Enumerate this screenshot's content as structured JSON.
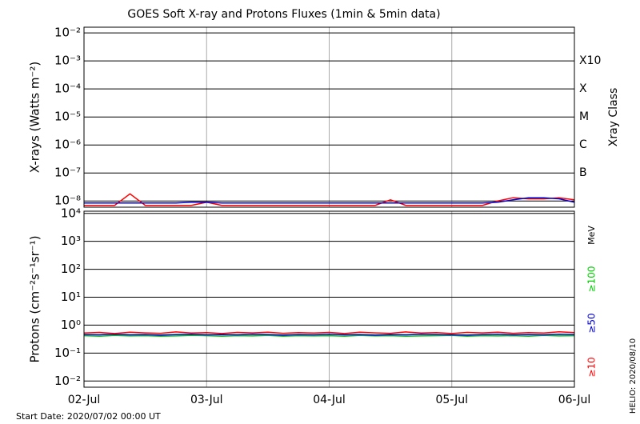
{
  "chart_data": [
    {
      "type": "line",
      "title": "GOES Soft X-ray and Protons Fluxes   (1min & 5min data)",
      "y_label": "X-rays (Watts m⁻²)",
      "y2_label": "Xray Class",
      "log_y": true,
      "grid": true,
      "xlim": [
        0,
        4
      ],
      "xticks": [
        0,
        1,
        2,
        3,
        4
      ],
      "ylim": [
        6e-09,
        0.016
      ],
      "yticks": [
        {
          "value": 0.01,
          "label": "10⁻²"
        },
        {
          "value": 0.001,
          "label": "10⁻³"
        },
        {
          "value": 0.0001,
          "label": "10⁻⁴"
        },
        {
          "value": 1e-05,
          "label": "10⁻⁵"
        },
        {
          "value": 1e-06,
          "label": "10⁻⁶"
        },
        {
          "value": 1e-07,
          "label": "10⁻⁷"
        },
        {
          "value": 1e-08,
          "label": "10⁻⁸"
        }
      ],
      "y2lim": [
        6e-09,
        0.016
      ],
      "y2ticks": [
        {
          "value": 0.001,
          "label": "X10"
        },
        {
          "value": 0.0001,
          "label": "X"
        },
        {
          "value": 1e-05,
          "label": "M"
        },
        {
          "value": 1e-06,
          "label": "C"
        },
        {
          "value": 1e-07,
          "label": "B"
        }
      ],
      "x": [
        0,
        0.125,
        0.25,
        0.375,
        0.5,
        0.625,
        0.75,
        0.875,
        1,
        1.125,
        1.25,
        1.375,
        1.5,
        1.625,
        1.75,
        1.875,
        2,
        2.125,
        2.25,
        2.375,
        2.5,
        2.625,
        2.75,
        2.875,
        3,
        3.125,
        3.25,
        3.375,
        3.5,
        3.625,
        3.75,
        3.875,
        4
      ],
      "series": [
        {
          "color": "#ff0000",
          "values": [
            7e-09,
            7e-09,
            7e-09,
            1.8e-08,
            7e-09,
            7e-09,
            7e-09,
            7e-09,
            9e-09,
            7e-09,
            7e-09,
            7e-09,
            7e-09,
            7e-09,
            7e-09,
            7e-09,
            7e-09,
            7e-09,
            7e-09,
            7e-09,
            1.1e-08,
            7e-09,
            7e-09,
            7e-09,
            7e-09,
            7e-09,
            7e-09,
            1e-08,
            1.3e-08,
            1.2e-08,
            1.2e-08,
            1.3e-08,
            1.1e-08
          ]
        },
        {
          "color": "#0000cc",
          "values": [
            8.5e-09,
            8.5e-09,
            8.5e-09,
            8.5e-09,
            8.5e-09,
            8.5e-09,
            8.5e-09,
            9e-09,
            9e-09,
            8.5e-09,
            8.5e-09,
            8.5e-09,
            8.5e-09,
            8.5e-09,
            8.5e-09,
            8.5e-09,
            8.5e-09,
            8.5e-09,
            8.5e-09,
            8.5e-09,
            8.5e-09,
            8.5e-09,
            8.5e-09,
            8.5e-09,
            8.5e-09,
            8.5e-09,
            8.5e-09,
            9e-09,
            1.1e-08,
            1.3e-08,
            1.3e-08,
            1.2e-08,
            9e-09
          ]
        }
      ]
    },
    {
      "type": "line",
      "y_label": "Protons (cm⁻²s⁻¹sr⁻¹)",
      "unit_label": "MeV",
      "log_y": true,
      "grid": true,
      "threshold": 10,
      "xlim": [
        0,
        4
      ],
      "xticks": [
        {
          "value": 0,
          "label": "02-Jul"
        },
        {
          "value": 1,
          "label": "03-Jul"
        },
        {
          "value": 2,
          "label": "04-Jul"
        },
        {
          "value": 3,
          "label": "05-Jul"
        },
        {
          "value": 4,
          "label": "06-Jul"
        }
      ],
      "ylim": [
        0.006,
        12000
      ],
      "yticks": [
        {
          "value": 10000,
          "label": "10⁴"
        },
        {
          "value": 1000,
          "label": "10³"
        },
        {
          "value": 100,
          "label": "10²"
        },
        {
          "value": 10,
          "label": "10¹"
        },
        {
          "value": 1,
          "label": "10⁰"
        },
        {
          "value": 0.1,
          "label": "10⁻¹"
        },
        {
          "value": 0.01,
          "label": "10⁻²"
        }
      ],
      "x": [
        0,
        0.125,
        0.25,
        0.375,
        0.5,
        0.625,
        0.75,
        0.875,
        1,
        1.125,
        1.25,
        1.375,
        1.5,
        1.625,
        1.75,
        1.875,
        2,
        2.125,
        2.25,
        2.375,
        2.5,
        2.625,
        2.75,
        2.875,
        3,
        3.125,
        3.25,
        3.375,
        3.5,
        3.625,
        3.75,
        3.875,
        4
      ],
      "series": [
        {
          "name": "≥100",
          "color": "#00cc00",
          "values": [
            0.42,
            0.4,
            0.43,
            0.41,
            0.42,
            0.4,
            0.41,
            0.43,
            0.42,
            0.4,
            0.42,
            0.41,
            0.43,
            0.4,
            0.42,
            0.41,
            0.42,
            0.4,
            0.43,
            0.41,
            0.42,
            0.4,
            0.41,
            0.42,
            0.43,
            0.4,
            0.42,
            0.41,
            0.42,
            0.4,
            0.43,
            0.41,
            0.42
          ]
        },
        {
          "name": "≥50",
          "color": "#0000cc",
          "values": [
            0.46,
            0.45,
            0.47,
            0.45,
            0.46,
            0.44,
            0.46,
            0.47,
            0.45,
            0.46,
            0.45,
            0.47,
            0.46,
            0.44,
            0.46,
            0.45,
            0.47,
            0.45,
            0.46,
            0.44,
            0.46,
            0.45,
            0.47,
            0.46,
            0.45,
            0.44,
            0.46,
            0.47,
            0.45,
            0.46,
            0.45,
            0.47,
            0.46
          ]
        },
        {
          "name": "≥10",
          "color": "#ff0000",
          "values": [
            0.52,
            0.55,
            0.5,
            0.56,
            0.53,
            0.51,
            0.57,
            0.52,
            0.54,
            0.5,
            0.55,
            0.53,
            0.56,
            0.51,
            0.54,
            0.52,
            0.55,
            0.5,
            0.56,
            0.53,
            0.51,
            0.57,
            0.52,
            0.54,
            0.5,
            0.55,
            0.53,
            0.56,
            0.51,
            0.54,
            0.52,
            0.58,
            0.54
          ]
        }
      ]
    }
  ],
  "footer": {
    "start_date": "Start Date: 2020/07/02 00:00 UT",
    "credit": "HELIO: 2020/08/10"
  }
}
